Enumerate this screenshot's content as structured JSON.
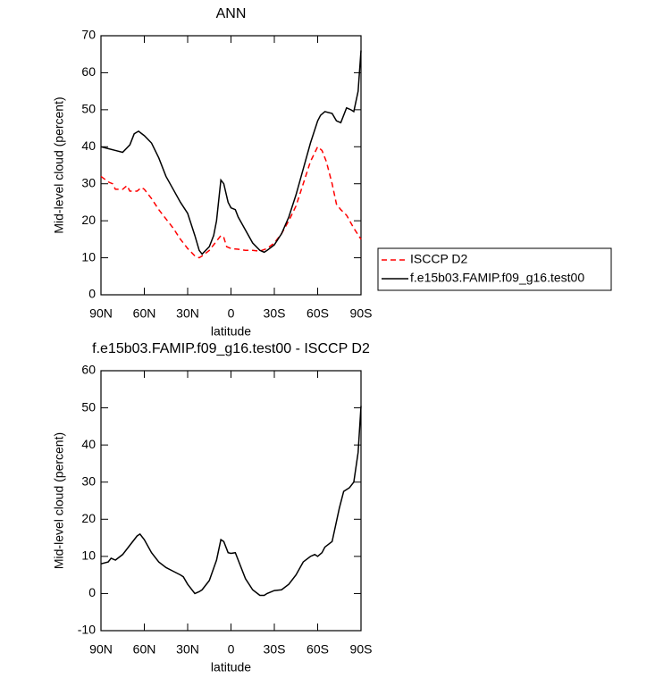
{
  "chart_data": [
    {
      "type": "line",
      "title": "ANN",
      "x_label": "latitude",
      "y_label": "Mid-level cloud (percent)",
      "xlim": [
        90,
        -90
      ],
      "ylim": [
        0,
        70
      ],
      "xticks": [
        {
          "value": 90,
          "label": "90N"
        },
        {
          "value": 60,
          "label": "60N"
        },
        {
          "value": 30,
          "label": "30N"
        },
        0,
        {
          "value": -30,
          "label": "30S"
        },
        {
          "value": -60,
          "label": "60S"
        },
        {
          "value": -90,
          "label": "90S"
        }
      ],
      "yticks": [
        0,
        10,
        20,
        30,
        40,
        50,
        60,
        70
      ],
      "legend": "right",
      "series": [
        {
          "name": "ISCCP D2",
          "color": "#ff0000",
          "style": "dashed",
          "x": [
            90,
            85,
            82,
            80,
            75,
            72,
            70,
            65,
            62,
            60,
            55,
            50,
            45,
            40,
            35,
            30,
            25,
            22,
            20,
            15,
            10,
            7,
            5,
            3,
            0,
            -5,
            -10,
            -15,
            -20,
            -25,
            -30,
            -35,
            -40,
            -45,
            -50,
            -55,
            -60,
            -63,
            -66,
            -70,
            -73,
            -76,
            -80,
            -85,
            -90
          ],
          "values": [
            32,
            30.5,
            30,
            28.5,
            28.5,
            29.5,
            28,
            28,
            29,
            28.5,
            26,
            23,
            20.5,
            18,
            15,
            12.5,
            10.5,
            10,
            10.5,
            12,
            14.5,
            16,
            15.5,
            13,
            12.5,
            12.3,
            12,
            12,
            11.8,
            12.5,
            14,
            16.5,
            20,
            24,
            30,
            36,
            40,
            39,
            36,
            30,
            24.5,
            23,
            21.5,
            18,
            15
          ]
        },
        {
          "name": "f.e15b03.FAMIP.f09_g16.test00",
          "color": "#000000",
          "style": "solid",
          "x": [
            90,
            85,
            80,
            75,
            70,
            67,
            64,
            60,
            55,
            50,
            45,
            40,
            35,
            30,
            25,
            22,
            20,
            15,
            12,
            10,
            7,
            5,
            2,
            0,
            -3,
            -5,
            -10,
            -15,
            -20,
            -23,
            -25,
            -30,
            -35,
            -40,
            -45,
            -50,
            -55,
            -60,
            -62,
            -65,
            -70,
            -73,
            -76,
            -80,
            -83,
            -85,
            -88,
            -90
          ],
          "values": [
            40,
            39.5,
            39,
            38.5,
            40.5,
            43.5,
            44.2,
            43,
            41,
            37,
            32,
            28.5,
            25,
            22,
            16,
            12,
            11,
            13,
            16,
            20,
            31,
            30,
            25,
            23.5,
            23,
            21,
            17.5,
            14,
            12,
            11.5,
            12,
            13.5,
            16.5,
            21,
            27,
            34,
            41,
            47,
            48.5,
            49.5,
            49,
            47,
            46.5,
            50.5,
            50,
            49.5,
            55,
            66
          ]
        }
      ]
    },
    {
      "type": "line",
      "title": "f.e15b03.FAMIP.f09_g16.test00 - ISCCP D2",
      "x_label": "latitude",
      "y_label": "Mid-level cloud (percent)",
      "xlim": [
        90,
        -90
      ],
      "ylim": [
        -10,
        60
      ],
      "xticks": [
        {
          "value": 90,
          "label": "90N"
        },
        {
          "value": 60,
          "label": "60N"
        },
        {
          "value": 30,
          "label": "30N"
        },
        0,
        {
          "value": -30,
          "label": "30S"
        },
        {
          "value": -60,
          "label": "60S"
        },
        {
          "value": -90,
          "label": "90S"
        }
      ],
      "yticks": [
        -10,
        0,
        10,
        20,
        30,
        40,
        50,
        60
      ],
      "series": [
        {
          "color": "#000000",
          "style": "solid",
          "x": [
            90,
            85,
            83,
            80,
            75,
            70,
            65,
            63,
            60,
            55,
            50,
            45,
            40,
            35,
            33,
            30,
            25,
            22,
            20,
            15,
            10,
            7,
            5,
            2,
            0,
            -3,
            -5,
            -10,
            -15,
            -20,
            -23,
            -25,
            -30,
            -35,
            -40,
            -45,
            -50,
            -55,
            -58,
            -60,
            -63,
            -65,
            -70,
            -75,
            -78,
            -82,
            -85,
            -88,
            -90
          ],
          "values": [
            8,
            8.5,
            9.5,
            9,
            10.5,
            13,
            15.5,
            16,
            14.5,
            11,
            8.5,
            7,
            6,
            5,
            4.5,
            2.5,
            0,
            0.5,
            1,
            3.5,
            9,
            14.5,
            14,
            11,
            10.8,
            11,
            9,
            4,
            1,
            -0.5,
            -0.5,
            0,
            0.8,
            1,
            2.5,
            5,
            8.5,
            10,
            10.5,
            10,
            11,
            12.5,
            14,
            23,
            27.5,
            28.5,
            30,
            38,
            50.5
          ]
        }
      ]
    }
  ]
}
